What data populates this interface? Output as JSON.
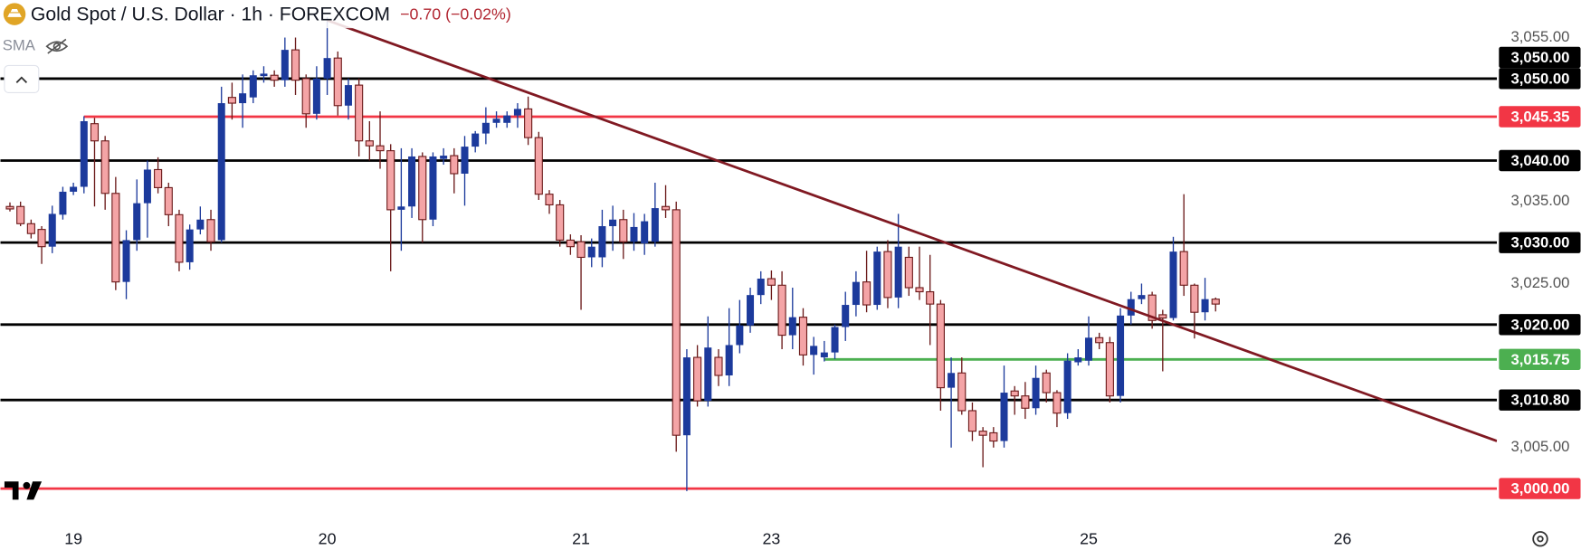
{
  "header": {
    "title": "Gold Spot / U.S. Dollar · 1h · FOREXCOM",
    "change": "−0.70 (−0.02%)",
    "indicator": "SMA"
  },
  "chart_data": {
    "type": "candlestick",
    "x": [
      -6,
      -5,
      -4,
      -3,
      -2,
      -1,
      0,
      1,
      2,
      3,
      4,
      5,
      6,
      7,
      8,
      9,
      10,
      11,
      12,
      13,
      14,
      15,
      16,
      17,
      18,
      19,
      20,
      21,
      22,
      23,
      24,
      25,
      26,
      27,
      28,
      29,
      30,
      31,
      32,
      33,
      34,
      35,
      36,
      37,
      38,
      39,
      40,
      41,
      42,
      43,
      44,
      45,
      46,
      47,
      48,
      49,
      50,
      51,
      52,
      53,
      54,
      55,
      56,
      57,
      58,
      59,
      60,
      61,
      62,
      63,
      64,
      65,
      66,
      67,
      68,
      69,
      70,
      71,
      72,
      73,
      74,
      75,
      76,
      77,
      78,
      79,
      80,
      81,
      82,
      83,
      84,
      85,
      86,
      87,
      88,
      89,
      90,
      91,
      92,
      93,
      94,
      95,
      96,
      97,
      98,
      99,
      100,
      101,
      102,
      103,
      104,
      105,
      106,
      107,
      108
    ],
    "open": [
      3034.4,
      3034.4,
      3032.3,
      3031.6,
      3029.5,
      3033.4,
      3036.2,
      3036.8,
      3044.5,
      3042.4,
      3036,
      3025.2,
      3030.3,
      3034.8,
      3038.9,
      3036.7,
      3033.4,
      3027.6,
      3031.6,
      3032.8,
      3030.3,
      3047.7,
      3047,
      3047.7,
      3050.3,
      3050.4,
      3049.8,
      3053.5,
      3050,
      3045.7,
      3050,
      3052.5,
      3046.7,
      3049.2,
      3042.4,
      3041.8,
      3041.2,
      3034,
      3034.4,
      3040.5,
      3032.8,
      3040.2,
      3040.6,
      3038.4,
      3041.7,
      3043.3,
      3044.6,
      3044.6,
      3045.5,
      3046.3,
      3042.8,
      3035.9,
      3034.6,
      3030.3,
      3030.1,
      3028.2,
      3028.2,
      3032,
      3032.8,
      3030.1,
      3029.9,
      3030.1,
      3034.4,
      3034,
      3006.5,
      3016,
      3010.7,
      3016,
      3013.8,
      3017.5,
      3019.9,
      3023.6,
      3025.6,
      3024.8,
      3018.7,
      3020.9,
      3016.3,
      3016,
      3016.6,
      3019.7,
      3022.4,
      3025.2,
      3022.4,
      3028.9,
      3023.3,
      3028.2,
      3024.5,
      3024,
      3022.5,
      3012.3,
      3014.1,
      3009.5,
      3007,
      3006.8,
      3005.8,
      3011.9,
      3011.3,
      3009.8,
      3014.1,
      3011.7,
      3009.2,
      3015.4,
      3015.6,
      3018.4,
      3017.8,
      3011.3,
      3021.1,
      3023.1,
      3023.6,
      3021.2,
      3020.8,
      3028.9,
      3024.8,
      3021.5,
      3023.1
    ],
    "high": [
      3034.9,
      3035,
      3032.8,
      3032,
      3034.5,
      3036.8,
      3037.3,
      3045.4,
      3045.2,
      3043,
      3038,
      3031.5,
      3037.7,
      3040,
      3040.4,
      3037.3,
      3034,
      3032.2,
      3034.4,
      3034,
      3049,
      3049.5,
      3050.5,
      3051,
      3051.5,
      3051,
      3055,
      3055,
      3050.5,
      3051.5,
      3057.5,
      3053.3,
      3050,
      3050,
      3044.8,
      3046,
      3042,
      3041.5,
      3041.5,
      3041,
      3041,
      3041.5,
      3041.5,
      3043,
      3043.6,
      3046.5,
      3046,
      3046,
      3047,
      3047.8,
      3043.5,
      3036.4,
      3035.2,
      3031,
      3030.9,
      3030.5,
      3034,
      3034.5,
      3034,
      3033.6,
      3033.5,
      3037.3,
      3037,
      3035,
      3017,
      3017.5,
      3021,
      3017,
      3022,
      3023,
      3024.5,
      3026.5,
      3026.6,
      3026.5,
      3024.5,
      3022,
      3018.5,
      3018,
      3020,
      3024,
      3026.5,
      3029,
      3029.5,
      3030.3,
      3033.5,
      3029.5,
      3029.5,
      3028.5,
      3023,
      3016,
      3016,
      3010.5,
      3007.5,
      3007.5,
      3015,
      3012.5,
      3013,
      3015,
      3014.5,
      3012,
      3016.5,
      3017,
      3021,
      3019,
      3018.5,
      3022,
      3024,
      3025,
      3024,
      3021.8,
      3030.7,
      3035.9,
      3025,
      3025.7,
      3023.3
    ],
    "low": [
      3033.8,
      3032,
      3030.5,
      3027.4,
      3028.7,
      3032.8,
      3035.8,
      3036,
      3034.4,
      3034,
      3024.2,
      3023.1,
      3029,
      3030.6,
      3036,
      3032,
      3026.5,
      3026.7,
      3031,
      3029,
      3030,
      3045,
      3044,
      3047,
      3049.5,
      3049,
      3049,
      3048,
      3044,
      3045,
      3048,
      3045.5,
      3045,
      3040.5,
      3040,
      3039,
      3026.5,
      3029,
      3033,
      3030,
      3032,
      3039.5,
      3036,
      3034.5,
      3041,
      3042,
      3044,
      3044,
      3044,
      3041.9,
      3035.2,
      3033.5,
      3029.5,
      3028.5,
      3021.8,
      3027,
      3027,
      3029,
      3028,
      3029,
      3028.5,
      3029.5,
      3033,
      3004.5,
      2999.7,
      3010,
      3010,
      3012.5,
      3012.5,
      3016.5,
      3019,
      3022.5,
      3023,
      3017,
      3017,
      3015,
      3013.9,
      3015.5,
      3015.8,
      3018,
      3021,
      3021.5,
      3021.8,
      3022,
      3022,
      3023.5,
      3023,
      3017.5,
      3009.5,
      3005,
      3009,
      3005.8,
      3002.6,
      3005,
      3005,
      3009,
      3008.5,
      3009,
      3010.5,
      3007.5,
      3008.5,
      3015,
      3015,
      3017,
      3010.5,
      3010.5,
      3020,
      3022.5,
      3019.5,
      3014.3,
      3020.5,
      3023.5,
      3018.3,
      3020.5,
      3021.6
    ],
    "close": [
      3034.1,
      3032.3,
      3031.1,
      3029.5,
      3033.5,
      3036.2,
      3036.8,
      3044.8,
      3042.4,
      3036,
      3025.2,
      3030.3,
      3034.8,
      3038.9,
      3036.7,
      3033.4,
      3027.6,
      3031.6,
      3032.8,
      3030.1,
      3047,
      3047,
      3048.2,
      3050.4,
      3050.6,
      3049.8,
      3053.5,
      3049.8,
      3045.7,
      3050,
      3052.5,
      3046.7,
      3049.2,
      3042.4,
      3041.8,
      3041.2,
      3034,
      3034.4,
      3040.5,
      3032.8,
      3040.5,
      3040.6,
      3038.4,
      3041.7,
      3043.3,
      3044.6,
      3045.1,
      3045.5,
      3046.3,
      3042.8,
      3035.9,
      3034.6,
      3030.3,
      3029.5,
      3028.2,
      3029.5,
      3032,
      3032.8,
      3030.1,
      3031.9,
      3032.6,
      3034.2,
      3034,
      3006.5,
      3016,
      3010.7,
      3017.2,
      3013.8,
      3017.5,
      3019.9,
      3023.6,
      3025.6,
      3024.8,
      3018.7,
      3020.9,
      3016.3,
      3017.4,
      3016.6,
      3019.7,
      3022.4,
      3025.2,
      3022.4,
      3028.9,
      3023.3,
      3029.5,
      3024.5,
      3024,
      3022.5,
      3012.3,
      3014.1,
      3009.5,
      3007,
      3006.5,
      3005.8,
      3011.7,
      3011.3,
      3009.8,
      3013.5,
      3011.7,
      3009.2,
      3015.6,
      3016,
      3018.4,
      3017.8,
      3011.3,
      3021.1,
      3023.1,
      3023.6,
      3020.5,
      3020.8,
      3028.9,
      3024.8,
      3021.5,
      3023.1,
      3022.5
    ],
    "up_color": "#1c3a9c",
    "down_color": "#f4a4a6",
    "down_outline": "#6b1a1a",
    "xlim": [
      -6.9,
      134.6
    ],
    "ylim": [
      2995.95,
      3059.58
    ],
    "xticks": [
      {
        "value": 0,
        "label": "19"
      },
      {
        "value": 24,
        "label": "20"
      },
      {
        "value": 48,
        "label": "21"
      },
      {
        "value": 66,
        "label": "23"
      },
      {
        "value": 96,
        "label": "25"
      },
      {
        "value": 120,
        "label": "26"
      }
    ],
    "yticks": [
      {
        "value": 3005,
        "label": "3,005.00"
      },
      {
        "value": 3025,
        "label": "3,025.00"
      },
      {
        "value": 3035,
        "label": "3,035.00"
      },
      {
        "value": 3055,
        "label": "3,055.00"
      }
    ],
    "levels": [
      {
        "value": 3050,
        "label": "3,050.00",
        "color": "#000000"
      },
      {
        "value": 3050,
        "label": "3,050.00",
        "color": "#000000"
      },
      {
        "value": 3045.35,
        "label": "3,045.35",
        "color": "#f23645",
        "from": 1
      },
      {
        "value": 3040,
        "label": "3,040.00",
        "color": "#000000"
      },
      {
        "value": 3030,
        "label": "3,030.00",
        "color": "#000000"
      },
      {
        "value": 3020,
        "label": "3,020.00",
        "color": "#000000"
      },
      {
        "value": 3015.75,
        "label": "3,015.75",
        "color": "#4caf50",
        "from": 71
      },
      {
        "value": 3010.8,
        "label": "3,010.80",
        "color": "#000000"
      },
      {
        "value": 3000,
        "label": "3,000.00",
        "color": "#f23645"
      }
    ],
    "trendline": {
      "x": [
        24,
        134.6
      ],
      "y": [
        3057.1,
        3005.8
      ],
      "color": "#801922"
    }
  }
}
